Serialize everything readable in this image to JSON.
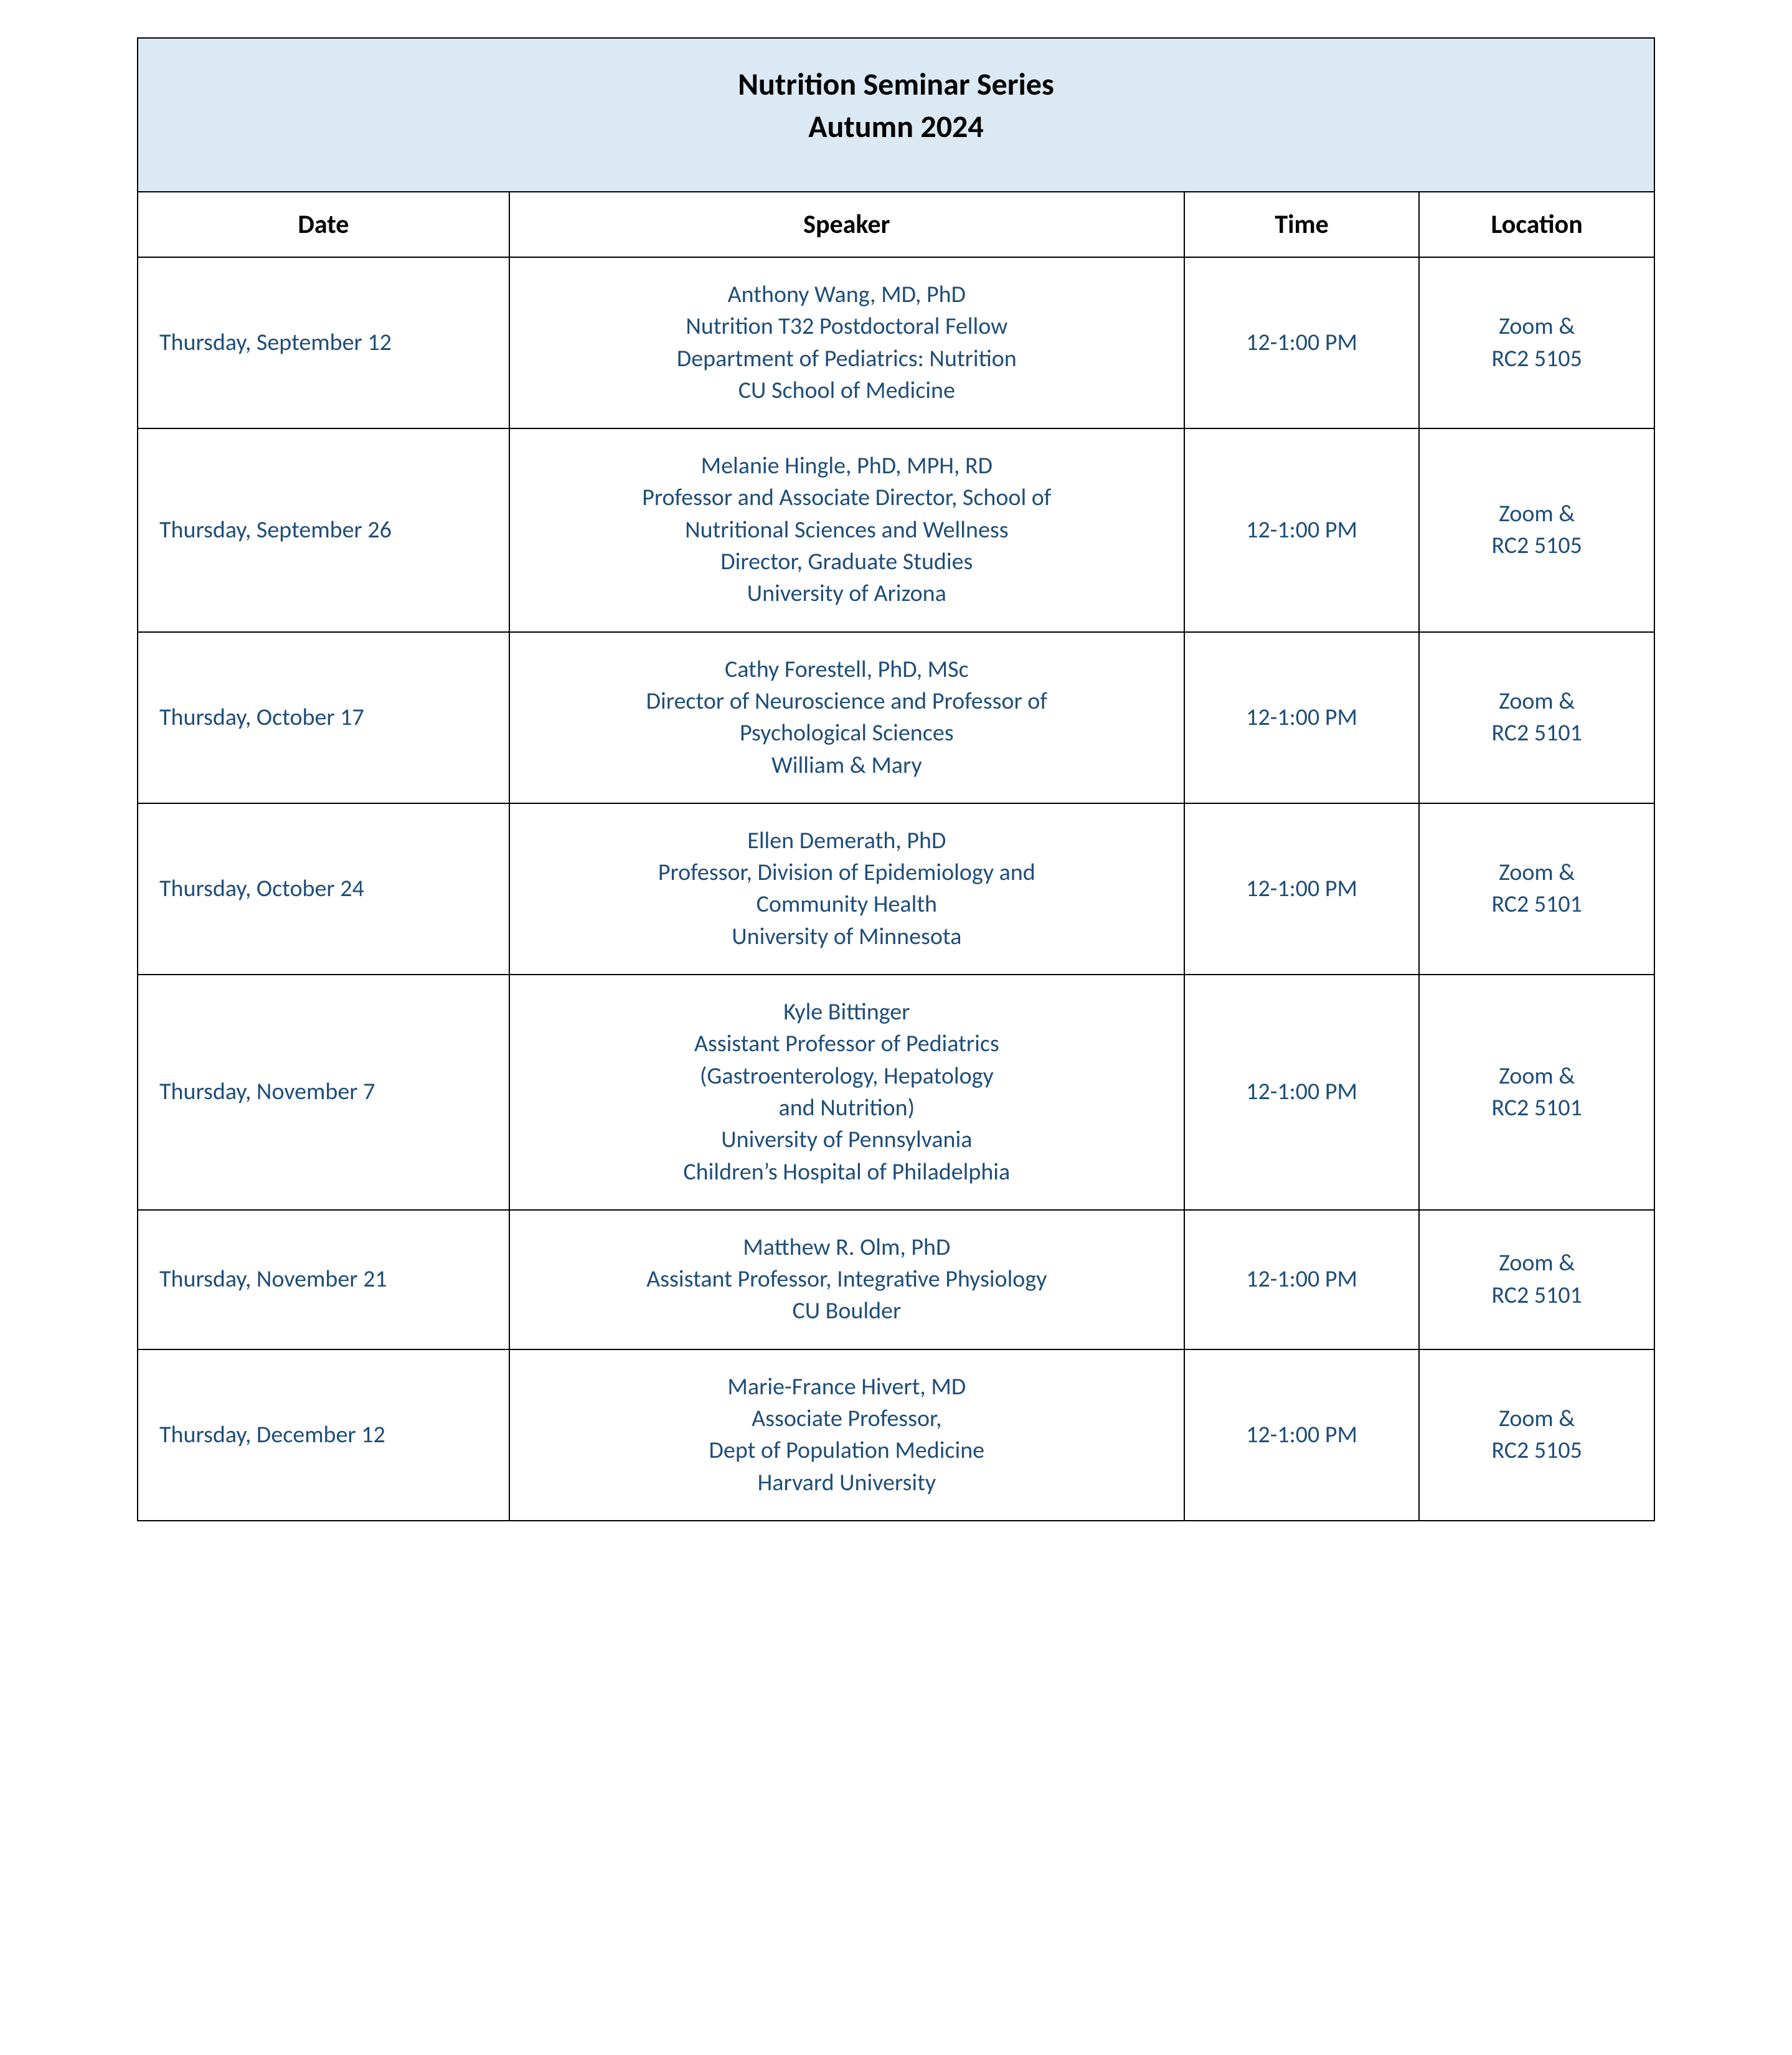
{
  "title": {
    "line1": "Nutrition Seminar Series",
    "line2": "Autumn 2024"
  },
  "colors": {
    "header_bg": "#dbe9f4",
    "data_text": "#1f4e79",
    "border": "#000000",
    "body_text": "#000000"
  },
  "columns": {
    "date": "Date",
    "speaker": "Speaker",
    "time": "Time",
    "location": "Location"
  },
  "rows": [
    {
      "date": "Thursday, September 12",
      "speaker": [
        "Anthony Wang, MD, PhD",
        "Nutrition T32 Postdoctoral Fellow",
        "Department of Pediatrics: Nutrition",
        "CU School of Medicine"
      ],
      "time": "12-1:00 PM",
      "location": [
        "Zoom &",
        "RC2 5105"
      ]
    },
    {
      "date": "Thursday, September 26",
      "speaker": [
        "Melanie Hingle, PhD, MPH, RD",
        "Professor and Associate Director, School of",
        "Nutritional Sciences and Wellness",
        "Director, Graduate Studies",
        "University of Arizona"
      ],
      "time": "12-1:00 PM",
      "location": [
        "Zoom &",
        "RC2 5105"
      ]
    },
    {
      "date": "Thursday, October 17",
      "speaker": [
        "Cathy Forestell, PhD, MSc",
        "Director of Neuroscience and Professor of",
        "Psychological Sciences",
        "William & Mary"
      ],
      "time": "12-1:00 PM",
      "location": [
        "Zoom &",
        "RC2 5101"
      ]
    },
    {
      "date": "Thursday, October 24",
      "speaker": [
        "Ellen Demerath, PhD",
        "Professor, Division of Epidemiology and",
        "Community Health",
        "University of Minnesota"
      ],
      "time": "12-1:00 PM",
      "location": [
        "Zoom &",
        "RC2 5101"
      ]
    },
    {
      "date": "Thursday, November 7",
      "speaker": [
        "Kyle Bittinger",
        "Assistant Professor of Pediatrics",
        "(Gastroenterology, Hepatology",
        "and Nutrition)",
        "University of Pennsylvania",
        "Children’s Hospital of Philadelphia"
      ],
      "time": "12-1:00 PM",
      "location": [
        "Zoom &",
        "RC2 5101"
      ]
    },
    {
      "date": "Thursday, November 21",
      "speaker": [
        "Matthew R. Olm, PhD",
        "Assistant Professor, Integrative Physiology",
        "CU Boulder"
      ],
      "time": "12-1:00 PM",
      "location": [
        "Zoom &",
        "RC2 5101"
      ]
    },
    {
      "date": "Thursday, December 12",
      "speaker": [
        "Marie-France Hivert, MD",
        "Associate Professor,",
        "Dept of Population Medicine",
        "Harvard University"
      ],
      "time": "12-1:00 PM",
      "location": [
        "Zoom &",
        "RC2 5105"
      ]
    }
  ]
}
